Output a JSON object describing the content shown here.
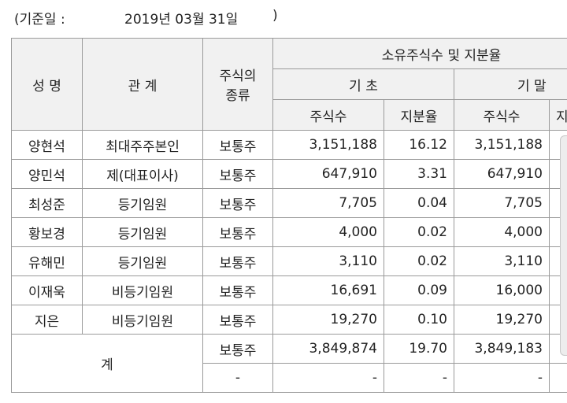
{
  "note": {
    "label": "(기준일 :",
    "date": "2019년 03월 31일",
    "close": ")"
  },
  "header": {
    "name": "성 명",
    "relation": "관 계",
    "stock_type": [
      "주식의",
      "종류"
    ],
    "holdings": "소유주식수 및 지분율",
    "start": "기 초",
    "end": "기 말",
    "start_shares": "주식수",
    "start_ratio": "지분율",
    "end_shares": "주식수",
    "end_ratio": "지"
  },
  "rows": [
    {
      "name": "양현석",
      "relation": "최대주주본인",
      "type": "보통주",
      "start_shares": "3,151,188",
      "start_ratio": "16.12",
      "end_shares": "3,151,188"
    },
    {
      "name": "양민석",
      "relation": "제(대표이사)",
      "type": "보통주",
      "start_shares": "647,910",
      "start_ratio": "3.31",
      "end_shares": "647,910"
    },
    {
      "name": "최성준",
      "relation": "등기임원",
      "type": "보통주",
      "start_shares": "7,705",
      "start_ratio": "0.04",
      "end_shares": "7,705"
    },
    {
      "name": "황보경",
      "relation": "등기임원",
      "type": "보통주",
      "start_shares": "4,000",
      "start_ratio": "0.02",
      "end_shares": "4,000"
    },
    {
      "name": "유해민",
      "relation": "등기임원",
      "type": "보통주",
      "start_shares": "3,110",
      "start_ratio": "0.02",
      "end_shares": "3,110"
    },
    {
      "name": "이재욱",
      "relation": "비등기임원",
      "type": "보통주",
      "start_shares": "16,691",
      "start_ratio": "0.09",
      "end_shares": "16,000"
    },
    {
      "name": "지은",
      "relation": "비등기임원",
      "type": "보통주",
      "start_shares": "19,270",
      "start_ratio": "0.10",
      "end_shares": "19,270"
    }
  ],
  "total": {
    "label": "계",
    "rows": [
      {
        "type": "보통주",
        "start_shares": "3,849,874",
        "start_ratio": "19.70",
        "end_shares": "3,849,183"
      },
      {
        "type": "-",
        "start_shares": "-",
        "start_ratio": "-",
        "end_shares": "-"
      }
    ]
  }
}
